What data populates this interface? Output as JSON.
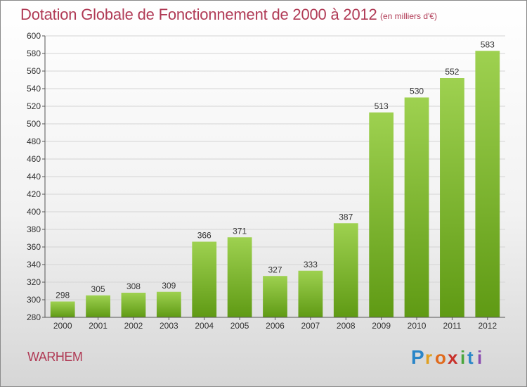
{
  "header": {
    "title": "Dotation Globale de Fonctionnement de 2000 à 2012",
    "subtitle": "(en milliers d'€)"
  },
  "footer": {
    "commune": "WARHEM",
    "brand": "Proxiti"
  },
  "colors": {
    "title": "#b03a55",
    "bar_top": "#9ed150",
    "bar_bottom": "#5f9a14",
    "grid": "#d4d4d4"
  },
  "chart_data": {
    "type": "bar",
    "categories": [
      "2000",
      "2001",
      "2002",
      "2003",
      "2004",
      "2005",
      "2006",
      "2007",
      "2008",
      "2009",
      "2010",
      "2011",
      "2012"
    ],
    "values": [
      298,
      305,
      308,
      309,
      366,
      371,
      327,
      333,
      387,
      513,
      530,
      552,
      583
    ],
    "ylim": [
      280,
      600
    ],
    "ytick_step": 20,
    "grid": true,
    "data_labels": true
  }
}
